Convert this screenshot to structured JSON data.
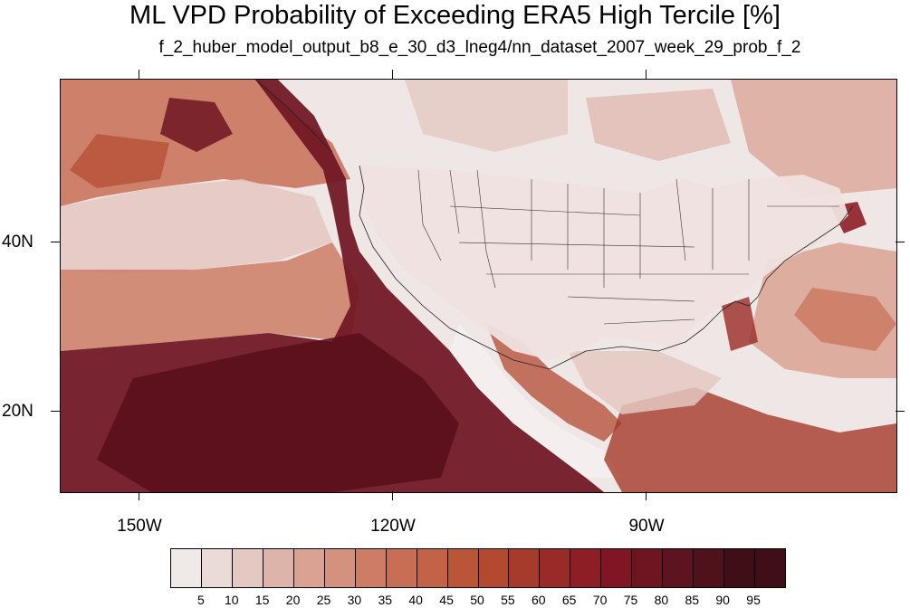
{
  "title": "ML VPD Probability of Exceeding ERA5 High Tercile [%]",
  "subtitle": "f_2_huber_model_output_b8_e_30_d3_lneg4/nn_dataset_2007_week_29_prob_f_2",
  "lat_labels": [
    "40N",
    "20N"
  ],
  "lon_labels": [
    "150W",
    "120W",
    "90W"
  ],
  "colorbar": {
    "labels": [
      "5",
      "10",
      "15",
      "20",
      "25",
      "30",
      "35",
      "40",
      "45",
      "50",
      "55",
      "60",
      "65",
      "70",
      "75",
      "80",
      "85",
      "90",
      "95"
    ],
    "colors": [
      "#efe9e8",
      "#eadad8",
      "#e4c8c2",
      "#deb3aa",
      "#d9a293",
      "#d4917e",
      "#cd7c66",
      "#c76e55",
      "#c26246",
      "#bb5538",
      "#b34a30",
      "#a63a2b",
      "#9a2a27",
      "#8e1e26",
      "#801624",
      "#6f1522",
      "#5e1420",
      "#4f121d",
      "#3f0e17"
    ]
  },
  "map_colors": {
    "background": "#efe7e5",
    "low": "#f4efee",
    "mid": "#d9a293",
    "high": "#b34a30",
    "very_high": "#6f1522",
    "max": "#5a0f1c",
    "lines": "#333333"
  }
}
